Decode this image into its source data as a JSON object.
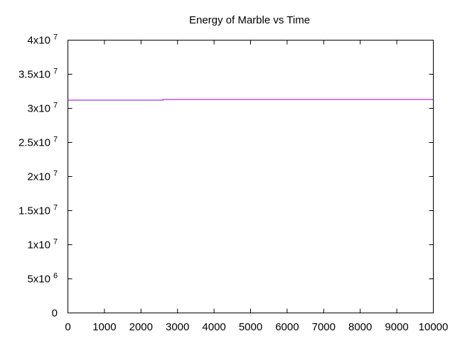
{
  "chart_data": {
    "type": "line",
    "title": "Energy of Marble vs Time",
    "xlabel": "",
    "ylabel": "",
    "xlim": [
      0,
      10000
    ],
    "ylim": [
      0,
      40000000
    ],
    "grid": false,
    "x_ticks": [
      {
        "value": 0,
        "label": "0"
      },
      {
        "value": 1000,
        "label": "1000"
      },
      {
        "value": 2000,
        "label": "2000"
      },
      {
        "value": 3000,
        "label": "3000"
      },
      {
        "value": 4000,
        "label": "4000"
      },
      {
        "value": 5000,
        "label": "5000"
      },
      {
        "value": 6000,
        "label": "6000"
      },
      {
        "value": 7000,
        "label": "7000"
      },
      {
        "value": 8000,
        "label": "8000"
      },
      {
        "value": 9000,
        "label": "9000"
      },
      {
        "value": 10000,
        "label": "10000"
      }
    ],
    "y_ticks": [
      {
        "value": 0,
        "mantissa": "0",
        "exponent": ""
      },
      {
        "value": 5000000,
        "mantissa": "5x10",
        "exponent": "6"
      },
      {
        "value": 10000000,
        "mantissa": "1x10",
        "exponent": "7"
      },
      {
        "value": 15000000,
        "mantissa": "1.5x10",
        "exponent": "7"
      },
      {
        "value": 20000000,
        "mantissa": "2x10",
        "exponent": "7"
      },
      {
        "value": 25000000,
        "mantissa": "2.5x10",
        "exponent": "7"
      },
      {
        "value": 30000000,
        "mantissa": "3x10",
        "exponent": "7"
      },
      {
        "value": 35000000,
        "mantissa": "3.5x10",
        "exponent": "7"
      },
      {
        "value": 40000000,
        "mantissa": "4x10",
        "exponent": "7"
      }
    ],
    "series": [
      {
        "color": "#9400d3",
        "x": [
          0,
          2600,
          2600,
          10000
        ],
        "y": [
          31200000,
          31200000,
          31300000,
          31300000
        ]
      }
    ]
  }
}
